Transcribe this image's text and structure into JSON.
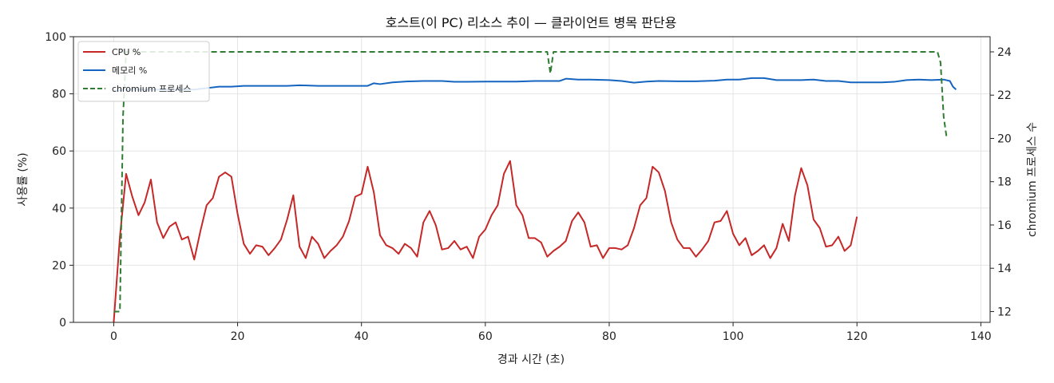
{
  "chart_data": {
    "type": "line",
    "title": "호스트(이 PC) 리소스 추이 — 클라이언트 병목 판단용",
    "xlabel": "경과 시간 (초)",
    "ylabel": "사용률 (%)",
    "y2label": "chromium 프로세스 수",
    "xlim": [
      -6.5,
      141.5
    ],
    "ylim": [
      0,
      100
    ],
    "y2lim": [
      11.5,
      24.7
    ],
    "xticks": [
      0,
      20,
      40,
      60,
      80,
      100,
      120,
      140
    ],
    "yticks": [
      0,
      20,
      40,
      60,
      80,
      100
    ],
    "y2ticks": [
      12,
      14,
      16,
      18,
      20,
      22,
      24
    ],
    "grid": true,
    "legend_position": "top-left",
    "series": [
      {
        "name": "CPU %",
        "axis": "left",
        "color": "#c62828",
        "style": "solid",
        "points": [
          [
            0,
            0
          ],
          [
            1,
            30
          ],
          [
            2,
            52
          ],
          [
            3,
            44
          ],
          [
            4,
            37.5
          ],
          [
            5,
            42
          ],
          [
            6,
            50
          ],
          [
            7,
            35
          ],
          [
            8,
            29.5
          ],
          [
            9,
            33.5
          ],
          [
            10,
            35
          ],
          [
            11,
            29
          ],
          [
            12,
            30
          ],
          [
            13,
            22
          ],
          [
            14,
            32
          ],
          [
            15,
            41
          ],
          [
            16,
            43.5
          ],
          [
            17,
            51
          ],
          [
            18,
            52.5
          ],
          [
            19,
            51
          ],
          [
            20,
            38
          ],
          [
            21,
            27.5
          ],
          [
            22,
            24
          ],
          [
            23,
            27
          ],
          [
            24,
            26.5
          ],
          [
            25,
            23.5
          ],
          [
            26,
            26
          ],
          [
            27,
            29
          ],
          [
            28,
            36
          ],
          [
            29,
            44.5
          ],
          [
            30,
            26.5
          ],
          [
            31,
            22.5
          ],
          [
            32,
            30
          ],
          [
            33,
            27.5
          ],
          [
            34,
            22.5
          ],
          [
            35,
            25
          ],
          [
            36,
            27
          ],
          [
            37,
            30
          ],
          [
            38,
            35.5
          ],
          [
            39,
            44
          ],
          [
            40,
            45
          ],
          [
            41,
            54.5
          ],
          [
            42,
            45.5
          ],
          [
            43,
            30.5
          ],
          [
            44,
            27
          ],
          [
            45,
            26
          ],
          [
            46,
            24
          ],
          [
            47,
            27.5
          ],
          [
            48,
            26
          ],
          [
            49,
            23
          ],
          [
            50,
            35
          ],
          [
            51,
            39
          ],
          [
            52,
            34
          ],
          [
            53,
            25.5
          ],
          [
            54,
            26
          ],
          [
            55,
            28.5
          ],
          [
            56,
            25.5
          ],
          [
            57,
            26.5
          ],
          [
            58,
            22.5
          ],
          [
            59,
            30
          ],
          [
            60,
            32.5
          ],
          [
            61,
            37.5
          ],
          [
            62,
            41
          ],
          [
            63,
            52
          ],
          [
            64,
            56.5
          ],
          [
            65,
            41
          ],
          [
            66,
            37.5
          ],
          [
            67,
            29.5
          ],
          [
            68,
            29.5
          ],
          [
            69,
            28
          ],
          [
            70,
            23
          ],
          [
            71,
            25
          ],
          [
            72,
            26.5
          ],
          [
            73,
            28.5
          ],
          [
            74,
            35.5
          ],
          [
            75,
            38.5
          ],
          [
            76,
            35
          ],
          [
            77,
            26.5
          ],
          [
            78,
            27
          ],
          [
            79,
            22.5
          ],
          [
            80,
            26
          ],
          [
            81,
            26
          ],
          [
            82,
            25.5
          ],
          [
            83,
            27
          ],
          [
            84,
            33
          ],
          [
            85,
            41
          ],
          [
            86,
            43.5
          ],
          [
            87,
            54.5
          ],
          [
            88,
            52.5
          ],
          [
            89,
            46
          ],
          [
            90,
            35
          ],
          [
            91,
            29
          ],
          [
            92,
            26
          ],
          [
            93,
            26
          ],
          [
            94,
            23
          ],
          [
            95,
            25.5
          ],
          [
            96,
            28.5
          ],
          [
            97,
            35
          ],
          [
            98,
            35.5
          ],
          [
            99,
            39
          ],
          [
            100,
            31
          ],
          [
            101,
            27
          ],
          [
            102,
            29.5
          ],
          [
            103,
            23.5
          ],
          [
            104,
            25
          ],
          [
            105,
            27
          ],
          [
            106,
            22.5
          ],
          [
            107,
            26
          ],
          [
            108,
            34.5
          ],
          [
            109,
            28.5
          ],
          [
            110,
            44.5
          ],
          [
            111,
            54
          ],
          [
            112,
            48
          ],
          [
            113,
            36
          ],
          [
            114,
            33
          ],
          [
            115,
            26.5
          ],
          [
            116,
            27
          ],
          [
            117,
            30
          ],
          [
            118,
            25
          ],
          [
            119,
            27
          ],
          [
            120,
            37
          ]
        ]
      },
      {
        "name": "메모리 %",
        "axis": "left",
        "color": "#1565c0",
        "style": "solid",
        "points": [
          [
            0,
            81
          ],
          [
            2,
            81.5
          ],
          [
            5,
            81.5
          ],
          [
            10,
            81.5
          ],
          [
            13,
            81.5
          ],
          [
            15,
            82
          ],
          [
            17,
            82.5
          ],
          [
            19,
            82.5
          ],
          [
            21,
            82.8
          ],
          [
            23,
            82.8
          ],
          [
            25,
            82.8
          ],
          [
            28,
            82.8
          ],
          [
            30,
            83
          ],
          [
            33,
            82.8
          ],
          [
            36,
            82.8
          ],
          [
            39,
            82.8
          ],
          [
            41,
            82.8
          ],
          [
            42,
            83.7
          ],
          [
            43,
            83.4
          ],
          [
            45,
            84
          ],
          [
            47,
            84.3
          ],
          [
            50,
            84.5
          ],
          [
            53,
            84.5
          ],
          [
            55,
            84.2
          ],
          [
            57,
            84.2
          ],
          [
            60,
            84.3
          ],
          [
            63,
            84.3
          ],
          [
            65,
            84.3
          ],
          [
            68,
            84.5
          ],
          [
            70,
            84.5
          ],
          [
            72,
            84.5
          ],
          [
            73,
            85.3
          ],
          [
            75,
            85
          ],
          [
            77,
            85
          ],
          [
            80,
            84.8
          ],
          [
            82,
            84.5
          ],
          [
            84,
            83.9
          ],
          [
            86,
            84.3
          ],
          [
            88,
            84.5
          ],
          [
            91,
            84.4
          ],
          [
            94,
            84.4
          ],
          [
            97,
            84.6
          ],
          [
            99,
            85
          ],
          [
            101,
            85
          ],
          [
            103,
            85.5
          ],
          [
            105,
            85.5
          ],
          [
            107,
            84.8
          ],
          [
            109,
            84.8
          ],
          [
            111,
            84.8
          ],
          [
            113,
            85
          ],
          [
            115,
            84.5
          ],
          [
            117,
            84.5
          ],
          [
            119,
            84
          ],
          [
            121,
            84
          ],
          [
            124,
            84
          ],
          [
            126,
            84.2
          ],
          [
            128,
            84.8
          ],
          [
            130,
            85
          ],
          [
            132,
            84.8
          ],
          [
            134,
            85
          ],
          [
            135,
            84.5
          ],
          [
            135.5,
            82.5
          ],
          [
            136,
            81.5
          ]
        ]
      },
      {
        "name": "chromium 프로세스",
        "axis": "right",
        "color": "#2e7d32",
        "style": "dashed",
        "points": [
          [
            0,
            12
          ],
          [
            0.5,
            12
          ],
          [
            1,
            12
          ],
          [
            1.5,
            21
          ],
          [
            2,
            24
          ],
          [
            3,
            24
          ],
          [
            10,
            24
          ],
          [
            20,
            24
          ],
          [
            30,
            24
          ],
          [
            40,
            24
          ],
          [
            50,
            24
          ],
          [
            60,
            24
          ],
          [
            70,
            24
          ],
          [
            70.5,
            23
          ],
          [
            71,
            24
          ],
          [
            80,
            24
          ],
          [
            90,
            24
          ],
          [
            100,
            24
          ],
          [
            110,
            24
          ],
          [
            120,
            24
          ],
          [
            130,
            24
          ],
          [
            133,
            24
          ],
          [
            133.5,
            23.5
          ],
          [
            134,
            21
          ],
          [
            134.5,
            20
          ]
        ]
      }
    ]
  }
}
